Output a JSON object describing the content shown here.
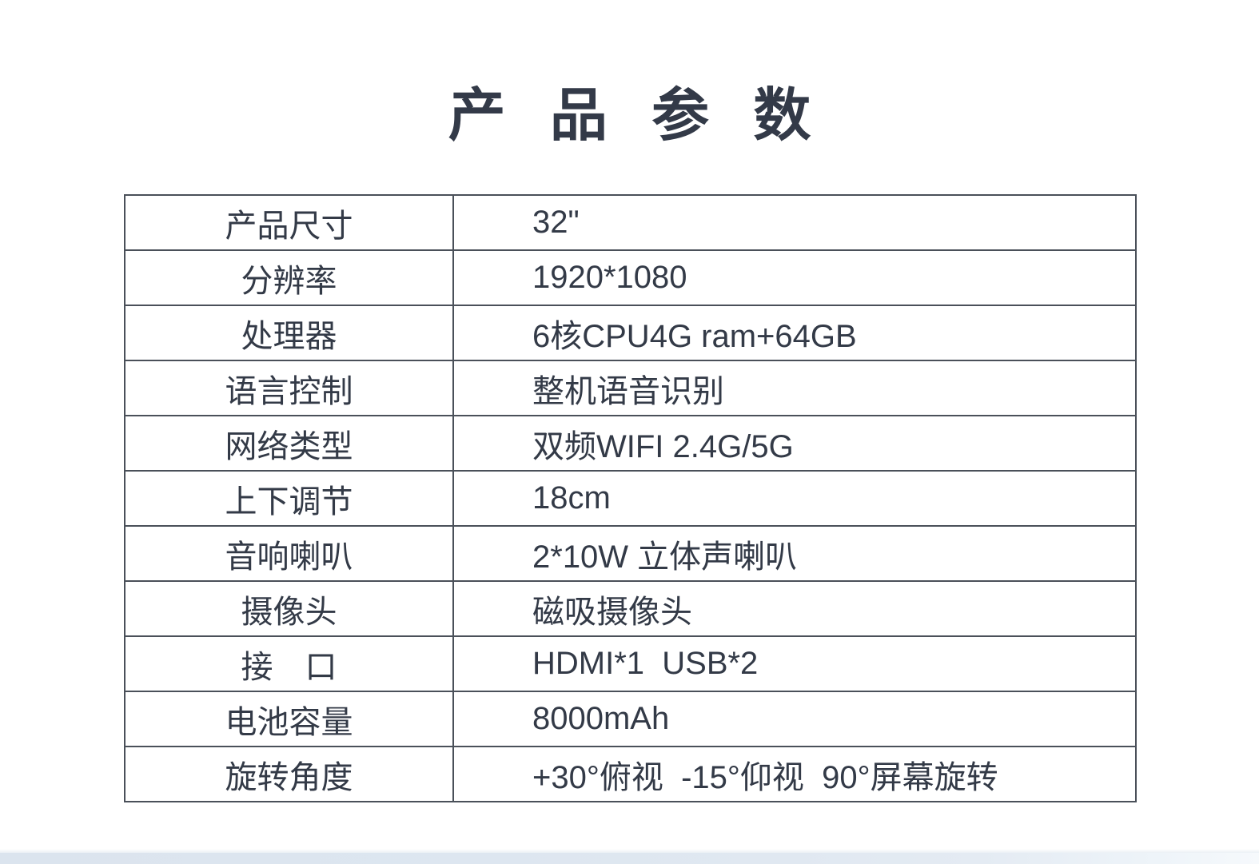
{
  "page": {
    "title": "产 品 参 数"
  },
  "table": {
    "rows": [
      {
        "label": "产品尺寸",
        "value": "32\""
      },
      {
        "label": "分辨率",
        "value": "1920*1080"
      },
      {
        "label": "处理器",
        "value": "6核CPU4G ram+64GB"
      },
      {
        "label": "语言控制",
        "value": "整机语音识别"
      },
      {
        "label": "网络类型",
        "value": "双频WIFI 2.4G/5G"
      },
      {
        "label": "上下调节",
        "value": "18cm"
      },
      {
        "label": "音响喇叭",
        "value": "2*10W 立体声喇叭"
      },
      {
        "label": "摄像头",
        "value": "磁吸摄像头"
      },
      {
        "label": "接　口",
        "value": "HDMI*1  USB*2"
      },
      {
        "label": "电池容量",
        "value": "8000mAh"
      },
      {
        "label": "旋转角度",
        "value": "+30°俯视  -15°仰视  90°屏幕旋转"
      }
    ]
  },
  "colors": {
    "bg": "#ffffff",
    "text": "#333a47",
    "title": "#333a48",
    "border": "#4a5059",
    "band_left": "#dbe4ee",
    "band_right": "#f6f9fc"
  }
}
